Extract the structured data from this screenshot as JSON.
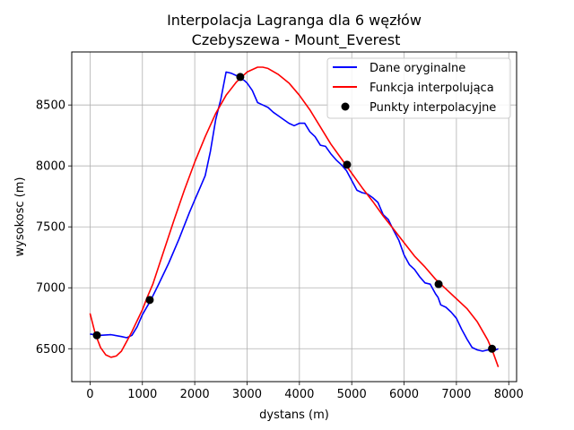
{
  "chart_data": {
    "type": "line",
    "title_line1": "Interpolacja Lagranga dla 6 węzłów",
    "title_line2": "Czebyszewa - Mount_Everest",
    "xlabel": "dystans (m)",
    "ylabel": "wysokosc (m)",
    "xlim": [
      -350,
      8150
    ],
    "ylim": [
      6230,
      8935
    ],
    "xticks": [
      0,
      1000,
      2000,
      3000,
      4000,
      5000,
      6000,
      7000,
      8000
    ],
    "yticks": [
      6500,
      7000,
      7500,
      8000,
      8500
    ],
    "grid": true,
    "legend_position": "top-right",
    "series": [
      {
        "name": "Dane oryginalne",
        "color": "#0000ff",
        "x": [
          0,
          200,
          400,
          600,
          700,
          800,
          900,
          1000,
          1150,
          1300,
          1500,
          1700,
          1900,
          2000,
          2100,
          2200,
          2300,
          2400,
          2500,
          2600,
          2700,
          2800,
          2870,
          2950,
          3000,
          3100,
          3200,
          3300,
          3400,
          3500,
          3600,
          3700,
          3800,
          3900,
          4000,
          4100,
          4200,
          4300,
          4400,
          4500,
          4600,
          4700,
          4800,
          4900,
          5000,
          5100,
          5200,
          5300,
          5400,
          5500,
          5600,
          5700,
          5800,
          5900,
          6000,
          6100,
          6200,
          6300,
          6400,
          6500,
          6600,
          6650,
          6700,
          6800,
          6900,
          7000,
          7100,
          7200,
          7300,
          7400,
          7500,
          7600,
          7700,
          7800
        ],
        "y": [
          6620,
          6610,
          6615,
          6600,
          6590,
          6610,
          6680,
          6780,
          6890,
          7020,
          7200,
          7400,
          7620,
          7720,
          7820,
          7920,
          8120,
          8380,
          8550,
          8770,
          8760,
          8740,
          8720,
          8700,
          8680,
          8620,
          8520,
          8500,
          8480,
          8440,
          8410,
          8380,
          8350,
          8330,
          8350,
          8350,
          8280,
          8240,
          8170,
          8160,
          8100,
          8050,
          8010,
          7960,
          7880,
          7800,
          7780,
          7770,
          7740,
          7700,
          7600,
          7560,
          7470,
          7390,
          7270,
          7190,
          7150,
          7090,
          7040,
          7030,
          6950,
          6920,
          6860,
          6840,
          6800,
          6750,
          6660,
          6580,
          6510,
          6490,
          6480,
          6490,
          6480,
          6500
        ]
      },
      {
        "name": "Funkcja interpolująca",
        "color": "#ff0000",
        "x": [
          0,
          100,
          200,
          300,
          400,
          500,
          600,
          700,
          800,
          900,
          1000,
          1100,
          1200,
          1400,
          1600,
          1800,
          2000,
          2200,
          2400,
          2600,
          2800,
          3000,
          3200,
          3300,
          3400,
          3600,
          3800,
          4000,
          4200,
          4400,
          4600,
          4800,
          5000,
          5200,
          5400,
          5600,
          5800,
          6000,
          6200,
          6400,
          6600,
          6800,
          7000,
          7200,
          7400,
          7600,
          7700,
          7800
        ],
        "y": [
          6790,
          6620,
          6510,
          6450,
          6430,
          6440,
          6480,
          6560,
          6640,
          6730,
          6820,
          6930,
          7030,
          7290,
          7550,
          7800,
          8030,
          8240,
          8430,
          8580,
          8690,
          8770,
          8810,
          8810,
          8800,
          8750,
          8680,
          8580,
          8460,
          8320,
          8180,
          8060,
          7940,
          7820,
          7710,
          7590,
          7480,
          7370,
          7260,
          7170,
          7070,
          6990,
          6910,
          6830,
          6720,
          6570,
          6470,
          6350
        ]
      },
      {
        "name": "Punkty interpolacyjne",
        "color": "#000000",
        "x": [
          130,
          1140,
          2870,
          4910,
          6660,
          7680
        ],
        "y": [
          6610,
          6900,
          8730,
          8010,
          7030,
          6500
        ]
      }
    ]
  }
}
